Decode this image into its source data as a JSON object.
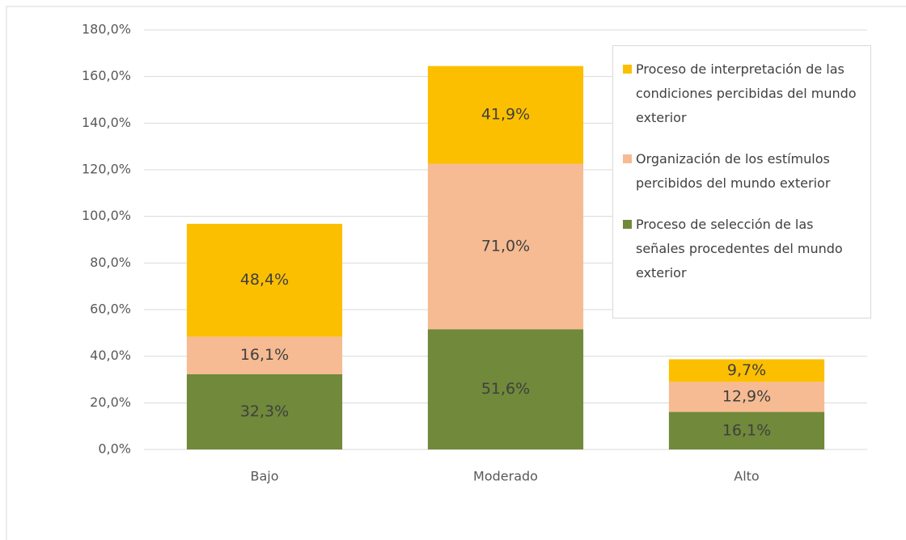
{
  "chart_data": {
    "type": "stacked_bar",
    "categories": [
      "Bajo",
      "Moderado",
      "Alto"
    ],
    "series": [
      {
        "name": "Proceso de selección de las señales procedentes del mundo exterior",
        "color": "#70893a",
        "values": [
          32.3,
          51.6,
          16.1
        ],
        "value_labels": [
          "32,3%",
          "51,6%",
          "16,1%"
        ]
      },
      {
        "name": "Organización de los estímulos percibidos del mundo exterior",
        "color": "#f6bb92",
        "values": [
          16.1,
          71.0,
          12.9
        ],
        "value_labels": [
          "16,1%",
          "71,0%",
          "12,9%"
        ]
      },
      {
        "name": "Proceso de interpretación de las condiciones percibidas del mundo exterior",
        "color": "#fcbf00",
        "values": [
          48.4,
          41.9,
          9.7
        ],
        "value_labels": [
          "48,4%",
          "41,9%",
          "9,7%"
        ]
      }
    ],
    "ylim": [
      0,
      180
    ],
    "yticks": [
      {
        "value": 0,
        "label": "0,0%"
      },
      {
        "value": 20,
        "label": "20,0%"
      },
      {
        "value": 40,
        "label": "40,0%"
      },
      {
        "value": 60,
        "label": "60,0%"
      },
      {
        "value": 80,
        "label": "80,0%"
      },
      {
        "value": 100,
        "label": "100,0%"
      },
      {
        "value": 120,
        "label": "120,0%"
      },
      {
        "value": 140,
        "label": "140,0%"
      },
      {
        "value": 160,
        "label": "160,0%"
      },
      {
        "value": 180,
        "label": "180,0%"
      }
    ],
    "grid": true,
    "legend": "right"
  }
}
